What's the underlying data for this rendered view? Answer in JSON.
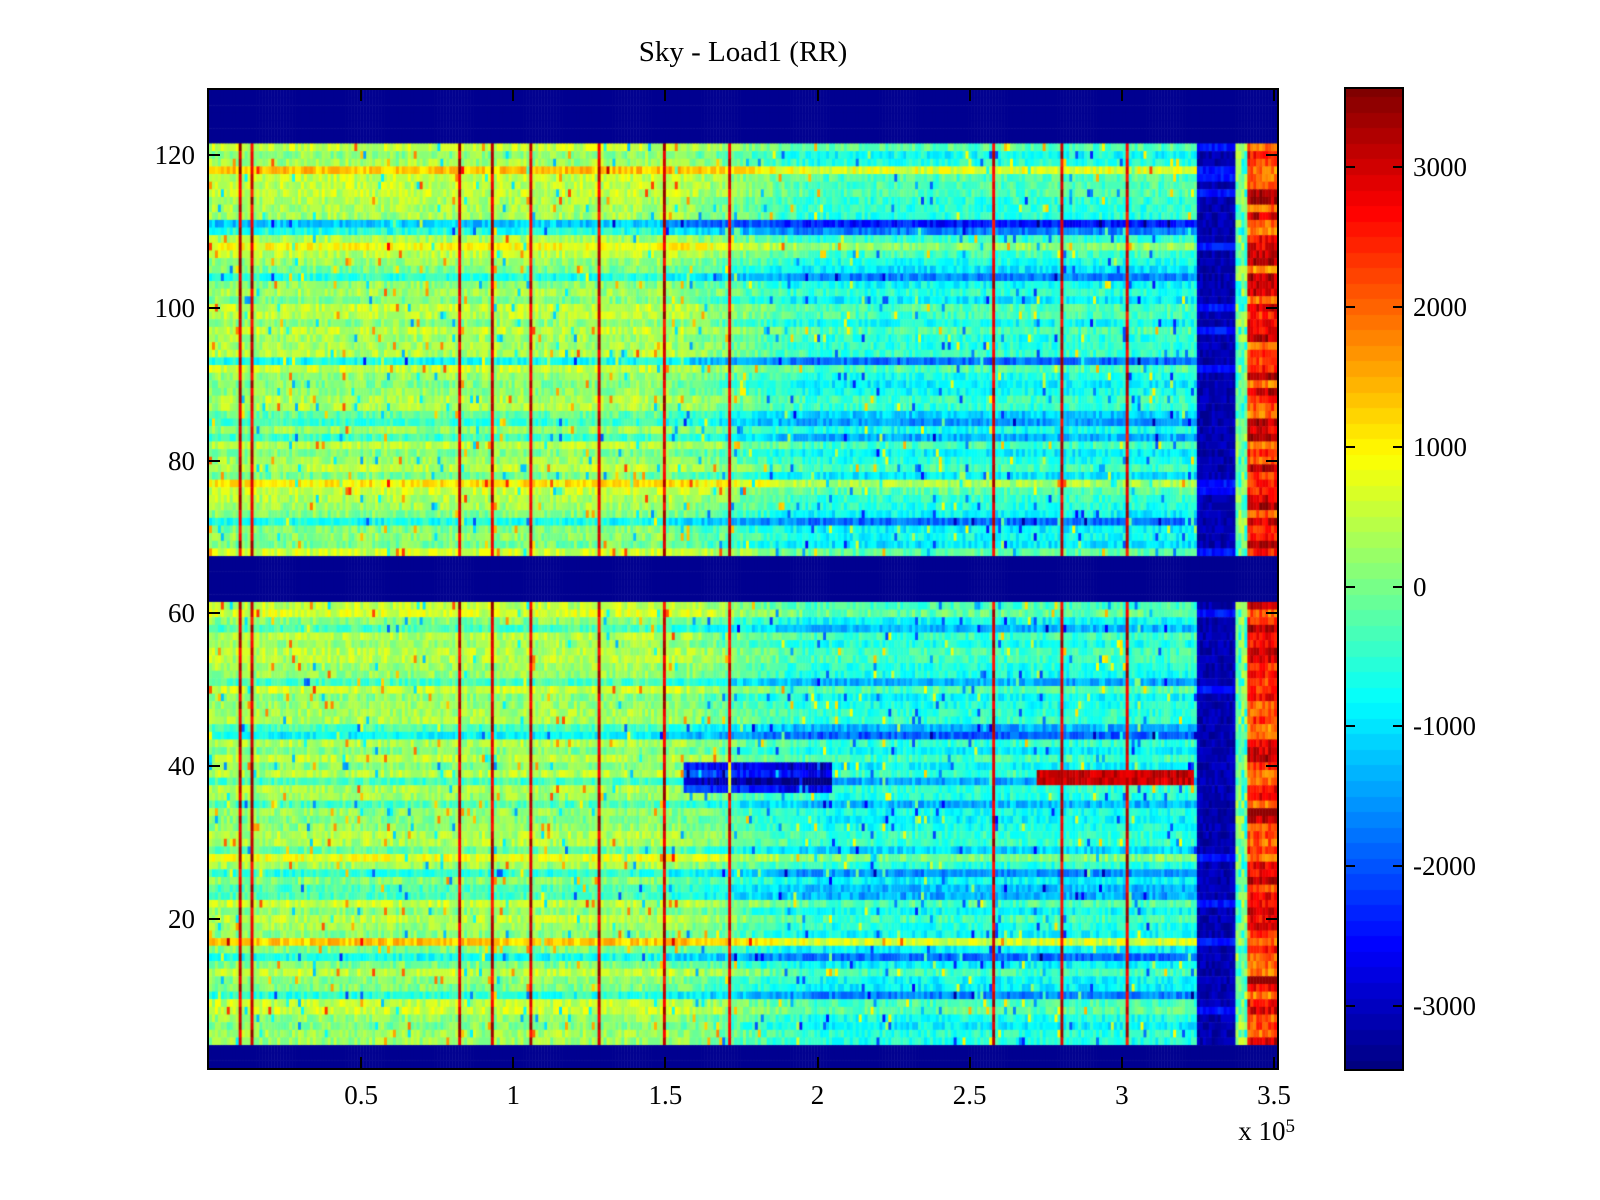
{
  "figure": {
    "title": "Sky - Load1 (RR)"
  },
  "chart_data": {
    "type": "heatmap",
    "title": "Sky - Load1 (RR)",
    "x_axis": {
      "min": 0,
      "max": 3.51,
      "scale_exponent": 5,
      "unit_multiplier": {
        "base": "x 10",
        "exponent": "5"
      },
      "ticks": [
        0.5,
        1,
        1.5,
        2,
        2.5,
        3,
        3.5
      ],
      "tick_labels": [
        "0.5",
        "1",
        "1.5",
        "2",
        "2.5",
        "3",
        "3.5"
      ]
    },
    "y_axis": {
      "min": 0.5,
      "max": 128.5,
      "rows": 128,
      "ticks": [
        20,
        40,
        60,
        80,
        100,
        120
      ],
      "tick_labels": [
        "20",
        "40",
        "60",
        "80",
        "100",
        "120"
      ]
    },
    "colorbar": {
      "min": -3450,
      "max": 3560,
      "levels": 64,
      "colormap": "jet",
      "ticks": [
        3000,
        2000,
        1000,
        0,
        -1000,
        -2000,
        -3000
      ],
      "tick_labels": [
        "3000",
        "2000",
        "1000",
        "0",
        "-1000",
        "-2000",
        "-3000"
      ]
    },
    "features": {
      "seed": 1337,
      "columns": 360,
      "nodata_color": "#000090",
      "nodata_row_bands": [
        [
          122,
          128
        ],
        [
          62,
          67
        ],
        [
          1,
          3
        ]
      ],
      "left_base_value": 250,
      "transition_x": [
        1.5,
        2.0
      ],
      "mid_base_value": -620,
      "noise_amplitude": 760,
      "speckle_probability": 0.022,
      "speckle_plus": 1450,
      "speckle_minus": 1350,
      "row_offset_spread": 600,
      "row_scale_right": 1.25,
      "cyan_rows": [
        10,
        15,
        24,
        35,
        44,
        51,
        58,
        72,
        85,
        93,
        104,
        110,
        111
      ],
      "warm_rows": [
        8,
        17,
        28,
        47,
        57,
        68,
        77,
        91,
        100,
        108,
        118
      ],
      "calibration_stripes_x": [
        0.1,
        0.145,
        0.37,
        0.585,
        0.825,
        0.93,
        1.06,
        1.28,
        1.5,
        1.715,
        1.93,
        2.145,
        2.36,
        2.58,
        2.8,
        3.015,
        3.12
      ],
      "stripe_half_width": 0.0042,
      "stripe_value_base": 2450,
      "stripe_value_spread": 1050,
      "navy_column_band": {
        "x": [
          3.245,
          3.375
        ],
        "value": -3350
      },
      "gap_band": {
        "x": [
          3.375,
          3.414
        ],
        "value": -150,
        "spread": 1600
      },
      "red_edge_band": {
        "x": [
          3.414,
          3.51
        ],
        "value": 2550,
        "row_spread": 750,
        "noise": 900,
        "maroon_rows": [
          12,
          34
        ]
      },
      "blue_blob": {
        "rows": [
          37,
          40
        ],
        "x": [
          1.56,
          2.05
        ],
        "delta": -2300
      },
      "red_row_segment": {
        "rows": [
          38,
          39
        ],
        "x": [
          2.72,
          3.24
        ],
        "value": 2700
      }
    }
  }
}
